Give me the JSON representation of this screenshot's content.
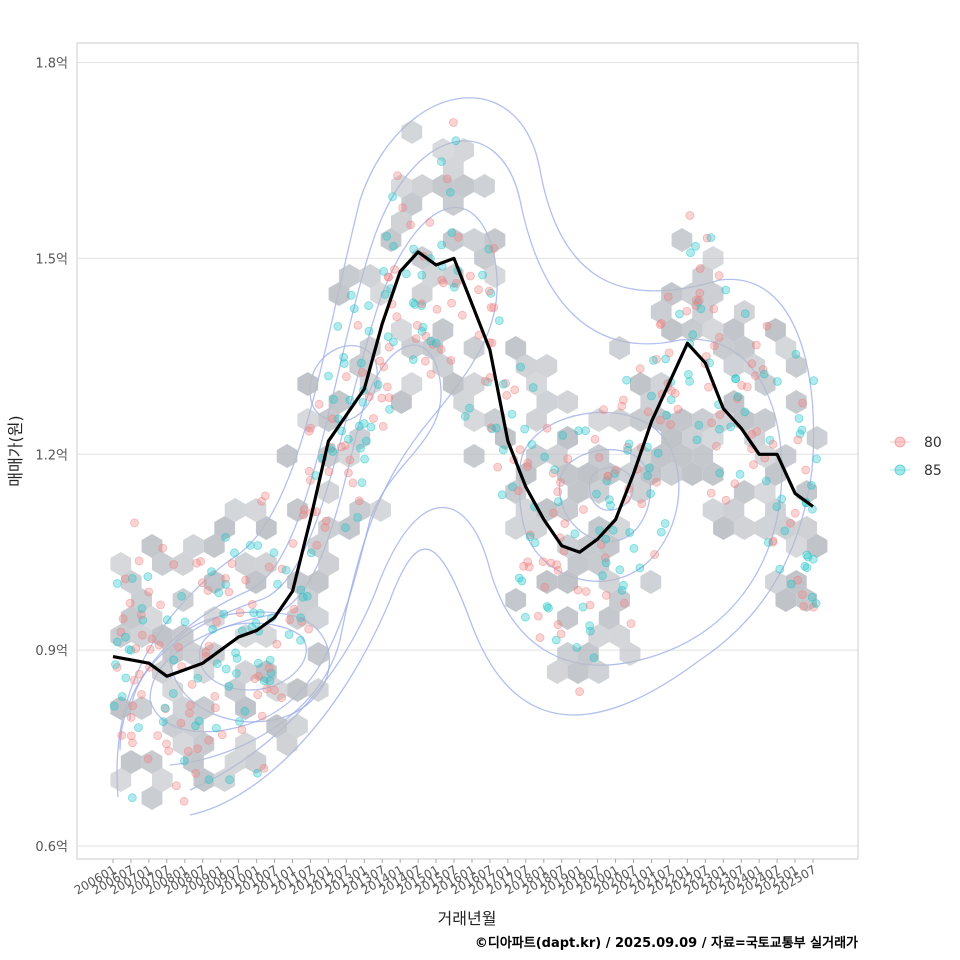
{
  "chart_data": {
    "type": "scatter",
    "xlabel": "거래년월",
    "ylabel": "매매가(원)",
    "caption": "©디아파트(dapt.kr) / 2025.09.09 / 자료=국토교통부 실거래가",
    "ylim": [
      0.58,
      1.83
    ],
    "y_ticks": [
      {
        "value": 0.6,
        "label": "0.6억"
      },
      {
        "value": 0.9,
        "label": "0.9억"
      },
      {
        "value": 1.2,
        "label": "1.2억"
      },
      {
        "value": 1.5,
        "label": "1.5억"
      },
      {
        "value": 1.8,
        "label": "1.8억"
      }
    ],
    "x_ticks": [
      "200601",
      "200607",
      "200701",
      "200707",
      "200801",
      "200807",
      "200901",
      "200907",
      "201001",
      "201007",
      "201101",
      "201107",
      "201201",
      "201207",
      "201301",
      "201307",
      "201401",
      "201407",
      "201501",
      "201507",
      "201601",
      "201607",
      "201701",
      "201707",
      "201801",
      "201807",
      "201901",
      "201907",
      "202001",
      "202007",
      "202101",
      "202107",
      "202201",
      "202207",
      "202301",
      "202307",
      "202401",
      "202407",
      "202501",
      "202507"
    ],
    "grid": true,
    "legend": {
      "position": "right",
      "entries": [
        {
          "name": "80",
          "color": "#f08080"
        },
        {
          "name": "85",
          "color": "#20c4c8"
        }
      ]
    },
    "trend_line": {
      "color": "#000000",
      "x": [
        "200601",
        "200701",
        "200707",
        "200801",
        "200807",
        "200901",
        "200907",
        "201001",
        "201007",
        "201101",
        "201107",
        "201201",
        "201207",
        "201301",
        "201307",
        "201401",
        "201407",
        "201501",
        "201507",
        "201601",
        "201607",
        "201701",
        "201707",
        "201801",
        "201807",
        "201901",
        "201907",
        "202001",
        "202007",
        "202101",
        "202107",
        "202201",
        "202207",
        "202301",
        "202307",
        "202401",
        "202407",
        "202501",
        "202507"
      ],
      "values": [
        0.89,
        0.88,
        0.86,
        0.87,
        0.88,
        0.9,
        0.92,
        0.93,
        0.95,
        0.99,
        1.1,
        1.22,
        1.26,
        1.3,
        1.4,
        1.48,
        1.51,
        1.49,
        1.5,
        1.43,
        1.36,
        1.22,
        1.15,
        1.1,
        1.06,
        1.05,
        1.07,
        1.1,
        1.17,
        1.25,
        1.31,
        1.37,
        1.34,
        1.27,
        1.24,
        1.2,
        1.2,
        1.14,
        1.12
      ]
    },
    "contour_color": "#9aa9e8",
    "hex_color": "#b8bcc2"
  }
}
